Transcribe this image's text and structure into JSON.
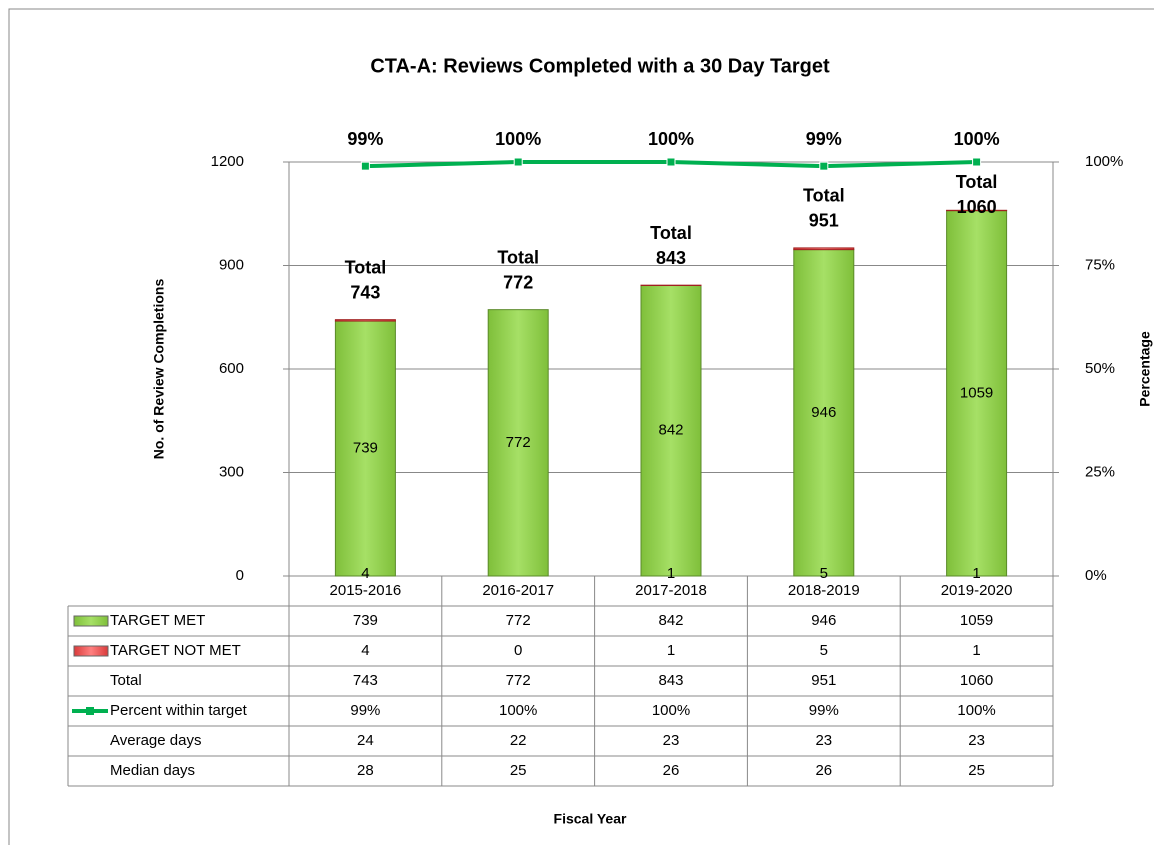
{
  "chart_data": {
    "type": "bar",
    "stacked": true,
    "title": "CTA-A: Reviews Completed with a 30 Day Target",
    "x_label": "Fiscal Year",
    "y_label": "No. of Review Completions",
    "y2_label": "Percentage",
    "categories": [
      "2015-2016",
      "2016-2017",
      "2017-2018",
      "2018-2019",
      "2019-2020"
    ],
    "series": [
      {
        "name": "TARGET MET",
        "color": "#92d050",
        "values": [
          739,
          772,
          842,
          946,
          1059
        ]
      },
      {
        "name": "TARGET NOT MET",
        "color": "#ff0000",
        "values": [
          4,
          0,
          1,
          5,
          1
        ]
      },
      {
        "name": "Percent within target",
        "color": "#00b050",
        "type": "line",
        "axis": "y2",
        "values": [
          99,
          100,
          100,
          99,
          100
        ],
        "value_labels": [
          "99%",
          "100%",
          "100%",
          "99%",
          "100%"
        ]
      }
    ],
    "totals": {
      "name": "Total",
      "values": [
        743,
        772,
        843,
        951,
        1060
      ]
    },
    "table_rows": [
      {
        "name": "Average days",
        "values": [
          24,
          22,
          23,
          23,
          23
        ]
      },
      {
        "name": "Median days",
        "values": [
          28,
          25,
          26,
          26,
          25
        ]
      }
    ],
    "ylim": [
      0,
      1200
    ],
    "yticks": [
      0,
      300,
      600,
      900,
      1200
    ],
    "y2lim": [
      0,
      100
    ],
    "y2ticks": [
      {
        "value": 0,
        "label": "0%"
      },
      {
        "value": 25,
        "label": "25%"
      },
      {
        "value": 50,
        "label": "50%"
      },
      {
        "value": 75,
        "label": "75%"
      },
      {
        "value": 100,
        "label": "100%"
      }
    ],
    "grid": true
  }
}
